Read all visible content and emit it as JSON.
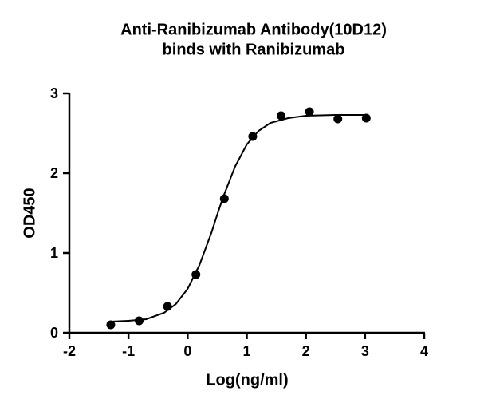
{
  "chart_data": {
    "type": "scatter",
    "title": [
      "Anti-Ranibizumab Antibody(10D12)",
      "binds with Ranibizumab"
    ],
    "x_label": "Log(ng/ml)",
    "y_label": "OD450",
    "xlim": [
      -2,
      4
    ],
    "xticks": [
      -2,
      -1,
      0,
      1,
      2,
      3,
      4
    ],
    "ylim": [
      0,
      3
    ],
    "yticks": [
      0,
      1,
      2,
      3
    ],
    "series": [
      {
        "type": "scatter",
        "color": "#000000",
        "x": [
          -1.3,
          -0.82,
          -0.34,
          0.14,
          0.62,
          1.1,
          1.58,
          2.06,
          2.54,
          3.02
        ],
        "values": [
          0.1,
          0.15,
          0.33,
          0.73,
          1.68,
          2.46,
          2.72,
          2.77,
          2.68,
          2.69
        ]
      },
      {
        "type": "line",
        "color": "#000000",
        "x": [
          -1.3,
          -1.0,
          -0.7,
          -0.4,
          -0.2,
          0,
          0.2,
          0.4,
          0.5,
          0.6,
          0.8,
          1.0,
          1.2,
          1.4,
          1.7,
          2.0,
          2.5,
          3.0
        ],
        "values": [
          0.14,
          0.15,
          0.17,
          0.25,
          0.36,
          0.55,
          0.85,
          1.25,
          1.48,
          1.7,
          2.08,
          2.36,
          2.53,
          2.63,
          2.69,
          2.72,
          2.73,
          2.73
        ]
      }
    ]
  }
}
